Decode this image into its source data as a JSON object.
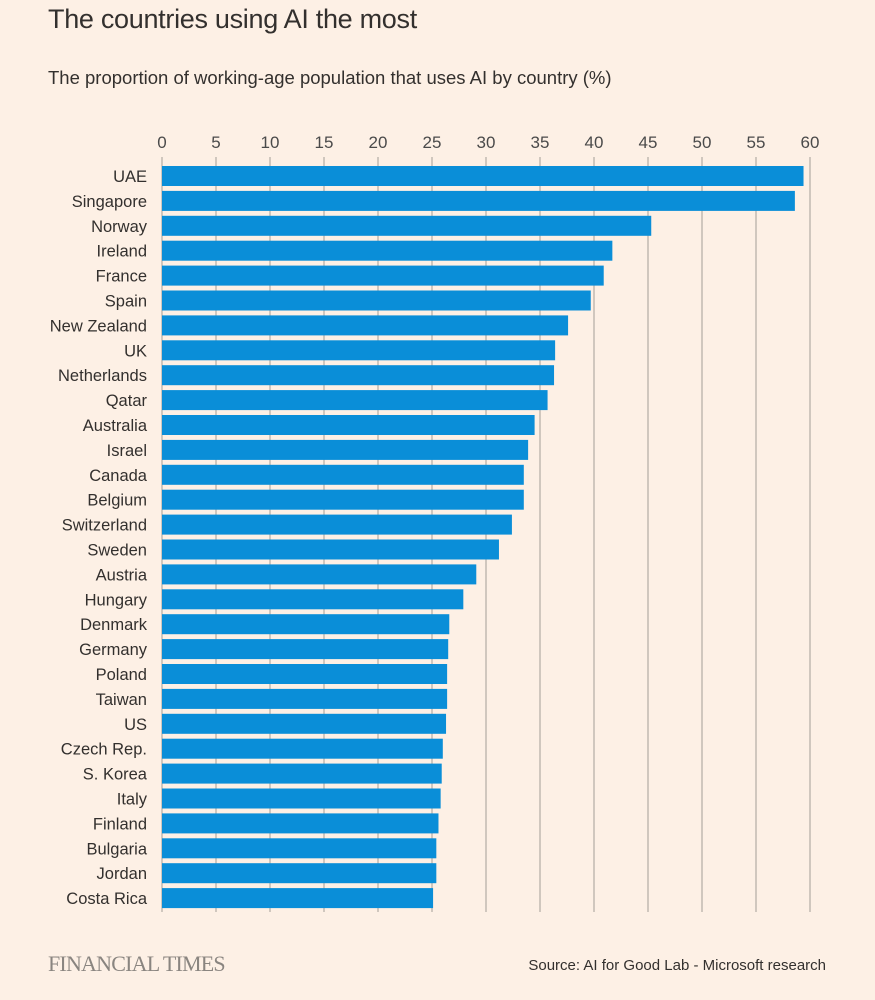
{
  "header": {
    "title": "The countries using AI the most",
    "subtitle": "The proportion of working-age population that uses AI by country (%)"
  },
  "footer": {
    "brand": "FINANCIAL TIMES",
    "source": "Source: AI for Good Lab - Microsoft research"
  },
  "colors": {
    "background": "#fdf0e5",
    "bar": "#0a8ed8",
    "grid": "#b3aca5",
    "text": "#33302e"
  },
  "chart_data": {
    "type": "bar",
    "orientation": "horizontal",
    "title": "The countries using AI the most",
    "subtitle": "The proportion of working-age population that uses AI by country (%)",
    "xlabel": "",
    "ylabel": "",
    "xlim": [
      0,
      60
    ],
    "xticks": [
      0,
      5,
      10,
      15,
      20,
      25,
      30,
      35,
      40,
      45,
      50,
      55,
      60
    ],
    "xtick_labels": [
      "0",
      "5",
      "10",
      "15",
      "20",
      "25",
      "30",
      "35",
      "40",
      "45",
      "50",
      "55",
      "60"
    ],
    "axis_position": "top",
    "grid": true,
    "categories": [
      "UAE",
      "Singapore",
      "Norway",
      "Ireland",
      "France",
      "Spain",
      "New Zealand",
      "UK",
      "Netherlands",
      "Qatar",
      "Australia",
      "Israel",
      "Canada",
      "Belgium",
      "Switzerland",
      "Sweden",
      "Austria",
      "Hungary",
      "Denmark",
      "Germany",
      "Poland",
      "Taiwan",
      "US",
      "Czech Rep.",
      "S. Korea",
      "Italy",
      "Finland",
      "Bulgaria",
      "Jordan",
      "Costa Rica"
    ],
    "values": [
      59.4,
      58.6,
      45.3,
      41.7,
      40.9,
      39.7,
      37.6,
      36.4,
      36.3,
      35.7,
      34.5,
      33.9,
      33.5,
      33.5,
      32.4,
      31.2,
      29.1,
      27.9,
      26.6,
      26.5,
      26.4,
      26.4,
      26.3,
      26.0,
      25.9,
      25.8,
      25.6,
      25.4,
      25.4,
      25.1
    ]
  }
}
